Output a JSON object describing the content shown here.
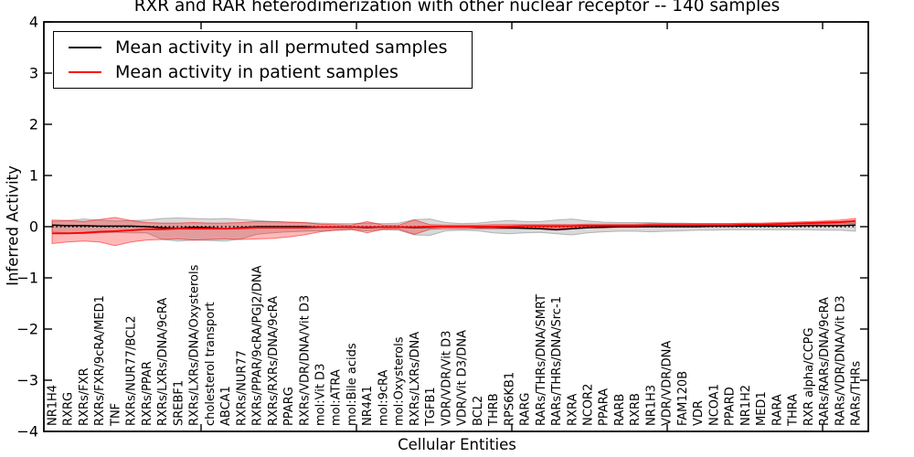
{
  "figure": {
    "title": "RXR and RAR heterodimerization with other nuclear receptor -- 140 samples",
    "xlabel": "Cellular Entities",
    "ylabel": "Inferred Activity"
  },
  "legend": {
    "position": "upper left",
    "items": [
      {
        "label": "Mean activity in all permuted samples",
        "color": "#000000"
      },
      {
        "label": "Mean activity in patient samples",
        "color": "#ff0000"
      }
    ]
  },
  "chart_data": {
    "type": "line",
    "title": "RXR and RAR heterodimerization with other nuclear receptor -- 140 samples",
    "xlabel": "Cellular Entities",
    "ylabel": "Inferred Activity",
    "ylim": [
      -4,
      4
    ],
    "y_ticks": [
      4,
      3,
      2,
      1,
      0,
      -1,
      -2,
      -3,
      -4
    ],
    "grid": false,
    "legend_position": "upper left",
    "colors": {
      "permuted_line": "#000000",
      "patient_line": "#ff0000",
      "permuted_band": "#808080",
      "patient_band": "#ff0000",
      "permuted_band_alpha": 0.3,
      "patient_band_alpha": 0.28,
      "spine": "#000000"
    },
    "zero_line": {
      "y": 0,
      "style": "dotted",
      "color": "#000000"
    },
    "categories": [
      "NR1H4",
      "RXRG",
      "RXRs/FXR",
      "RXRs/FXR/9cRA/MED1",
      "TNF",
      "RXRs/NUR77/BCL2",
      "RXRs/PPAR",
      "RXRs/LXRs/DNA/9cRA",
      "SREBF1",
      "RXRs/LXRs/DNA/Oxysterols",
      "cholesterol transport",
      "ABCA1",
      "RXRs/NUR77",
      "RXRs/PPAR/9cRA/PGJ2/DNA",
      "RXRs/RXRs/DNA/9cRA",
      "PPARG",
      "RXRs/VDR/DNA/Vit D3",
      "mol:Vit D3",
      "mol:ATRA",
      "mol:Bile acids",
      "NR4A1",
      "mol:9cRA",
      "mol:Oxysterols",
      "RXRs/LXRs/DNA",
      "TGFB1",
      "VDR/VDR/Vit D3",
      "VDR/Vit D3/DNA",
      "BCL2",
      "THRB",
      "RPS6KB1",
      "RARG",
      "RARs/THRs/DNA/SMRT",
      "RARs/THRs/DNA/Src-1",
      "RXRA",
      "NCOR2",
      "PPARA",
      "RARB",
      "RXRB",
      "NR1H3",
      "VDR/VDR/DNA",
      "FAM120B",
      "VDR",
      "NCOA1",
      "PPARD",
      "NR1H2",
      "MED1",
      "RARA",
      "THRA",
      "RXR alpha/CCPG",
      "RARs/RARs/DNA/9cRA",
      "RARs/VDR/DNA/Vit D3",
      "RARs/THRs"
    ],
    "series": [
      {
        "name": "Mean activity in all permuted samples",
        "color": "#000000",
        "style": "solid",
        "values": [
          0.03,
          0.02,
          0.02,
          0.01,
          0.01,
          0.01,
          0.0,
          -0.02,
          -0.03,
          -0.01,
          -0.02,
          -0.04,
          -0.02,
          0.0,
          0.0,
          0.0,
          0.0,
          -0.01,
          -0.01,
          -0.01,
          -0.02,
          -0.01,
          -0.01,
          -0.02,
          -0.01,
          0.0,
          0.0,
          -0.01,
          -0.01,
          -0.02,
          -0.03,
          -0.04,
          -0.06,
          -0.04,
          -0.02,
          -0.01,
          0.0,
          0.0,
          0.0,
          0.0,
          0.0,
          0.0,
          0.01,
          0.01,
          0.01,
          0.01,
          0.01,
          0.01,
          0.02,
          0.02,
          0.02,
          0.03
        ]
      },
      {
        "name": "Mean activity in patient samples",
        "color": "#ff0000",
        "style": "solid",
        "values": [
          -0.13,
          -0.13,
          -0.12,
          -0.1,
          -0.09,
          -0.07,
          -0.05,
          -0.05,
          -0.04,
          -0.04,
          -0.04,
          -0.04,
          -0.03,
          -0.02,
          -0.02,
          -0.02,
          -0.02,
          -0.01,
          -0.01,
          -0.01,
          -0.01,
          -0.01,
          -0.01,
          -0.01,
          0.0,
          0.0,
          0.0,
          0.0,
          0.0,
          0.0,
          0.01,
          0.01,
          0.01,
          0.01,
          0.02,
          0.02,
          0.02,
          0.02,
          0.03,
          0.03,
          0.03,
          0.03,
          0.03,
          0.03,
          0.04,
          0.04,
          0.05,
          0.06,
          0.07,
          0.08,
          0.09,
          0.11
        ]
      }
    ],
    "bands": [
      {
        "name": "permuted samples range",
        "color": "#808080",
        "alpha": 0.3,
        "top": [
          0.1,
          0.12,
          0.15,
          0.13,
          0.11,
          0.12,
          0.13,
          0.16,
          0.17,
          0.16,
          0.15,
          0.16,
          0.14,
          0.12,
          0.1,
          0.09,
          0.08,
          0.07,
          0.06,
          0.06,
          0.07,
          0.06,
          0.07,
          0.14,
          0.15,
          0.08,
          0.06,
          0.07,
          0.1,
          0.12,
          0.1,
          0.1,
          0.13,
          0.15,
          0.11,
          0.09,
          0.08,
          0.08,
          0.08,
          0.07,
          0.07,
          0.06,
          0.06,
          0.06,
          0.06,
          0.06,
          0.06,
          0.06,
          0.06,
          0.06,
          0.07,
          0.08
        ],
        "bottom": [
          -0.1,
          -0.12,
          -0.14,
          -0.12,
          -0.11,
          -0.12,
          -0.12,
          -0.25,
          -0.28,
          -0.26,
          -0.27,
          -0.28,
          -0.24,
          -0.15,
          -0.12,
          -0.1,
          -0.09,
          -0.08,
          -0.07,
          -0.06,
          -0.08,
          -0.06,
          -0.07,
          -0.16,
          -0.17,
          -0.08,
          -0.07,
          -0.08,
          -0.12,
          -0.14,
          -0.12,
          -0.11,
          -0.14,
          -0.16,
          -0.12,
          -0.1,
          -0.09,
          -0.09,
          -0.1,
          -0.09,
          -0.08,
          -0.07,
          -0.07,
          -0.06,
          -0.06,
          -0.06,
          -0.06,
          -0.06,
          -0.06,
          -0.07,
          -0.07,
          -0.09
        ]
      },
      {
        "name": "patient samples range",
        "color": "#ff0000",
        "alpha": 0.28,
        "top": [
          0.13,
          0.12,
          0.1,
          0.14,
          0.18,
          0.12,
          0.08,
          0.07,
          0.07,
          0.08,
          0.07,
          0.07,
          0.08,
          0.1,
          0.1,
          0.09,
          0.08,
          0.05,
          0.04,
          0.03,
          0.1,
          0.03,
          0.03,
          0.13,
          0.04,
          0.03,
          0.03,
          0.03,
          0.04,
          0.04,
          0.04,
          0.04,
          0.04,
          0.04,
          0.05,
          0.05,
          0.05,
          0.05,
          0.06,
          0.06,
          0.06,
          0.06,
          0.06,
          0.06,
          0.07,
          0.07,
          0.08,
          0.09,
          0.1,
          0.11,
          0.13,
          0.16
        ],
        "bottom": [
          -0.33,
          -0.3,
          -0.28,
          -0.3,
          -0.37,
          -0.3,
          -0.26,
          -0.25,
          -0.24,
          -0.26,
          -0.25,
          -0.24,
          -0.25,
          -0.24,
          -0.23,
          -0.2,
          -0.16,
          -0.1,
          -0.07,
          -0.05,
          -0.12,
          -0.05,
          -0.05,
          -0.15,
          -0.05,
          -0.04,
          -0.04,
          -0.04,
          -0.04,
          -0.04,
          -0.03,
          -0.03,
          -0.03,
          -0.03,
          -0.02,
          -0.02,
          -0.01,
          -0.01,
          0.0,
          0.0,
          0.0,
          0.0,
          0.0,
          0.0,
          0.01,
          0.01,
          0.02,
          0.03,
          0.04,
          0.05,
          0.05,
          0.06
        ]
      }
    ]
  }
}
